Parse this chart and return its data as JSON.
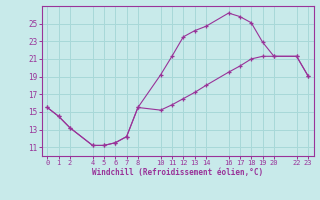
{
  "xlabel": "Windchill (Refroidissement éolien,°C)",
  "background_color": "#c8eaea",
  "grid_color": "#a8d8d8",
  "line_color": "#993399",
  "xlim": [
    -0.5,
    23.5
  ],
  "ylim": [
    10.0,
    27.0
  ],
  "xticks": [
    0,
    1,
    2,
    4,
    5,
    6,
    7,
    8,
    10,
    11,
    12,
    13,
    14,
    16,
    17,
    18,
    19,
    20,
    22,
    23
  ],
  "yticks": [
    11,
    13,
    15,
    17,
    19,
    21,
    23,
    25
  ],
  "upper_x": [
    0,
    1,
    2,
    4,
    5,
    6,
    7,
    8,
    10,
    11,
    12,
    13,
    14,
    16,
    17,
    18,
    19,
    20,
    22,
    23
  ],
  "upper_y": [
    15.5,
    14.5,
    13.2,
    11.2,
    11.2,
    11.5,
    12.2,
    15.5,
    19.2,
    21.3,
    23.5,
    24.2,
    24.7,
    26.2,
    25.8,
    25.1,
    22.9,
    21.3,
    21.3,
    19.1
  ],
  "lower_x": [
    0,
    1,
    2,
    4,
    5,
    6,
    7,
    8,
    10,
    11,
    12,
    13,
    14,
    16,
    17,
    18,
    19,
    20,
    22,
    23
  ],
  "lower_y": [
    15.5,
    14.5,
    13.2,
    11.2,
    11.2,
    11.5,
    12.2,
    15.5,
    15.2,
    15.8,
    16.5,
    17.2,
    18.0,
    19.5,
    20.2,
    21.0,
    21.3,
    21.3,
    21.3,
    19.1
  ]
}
